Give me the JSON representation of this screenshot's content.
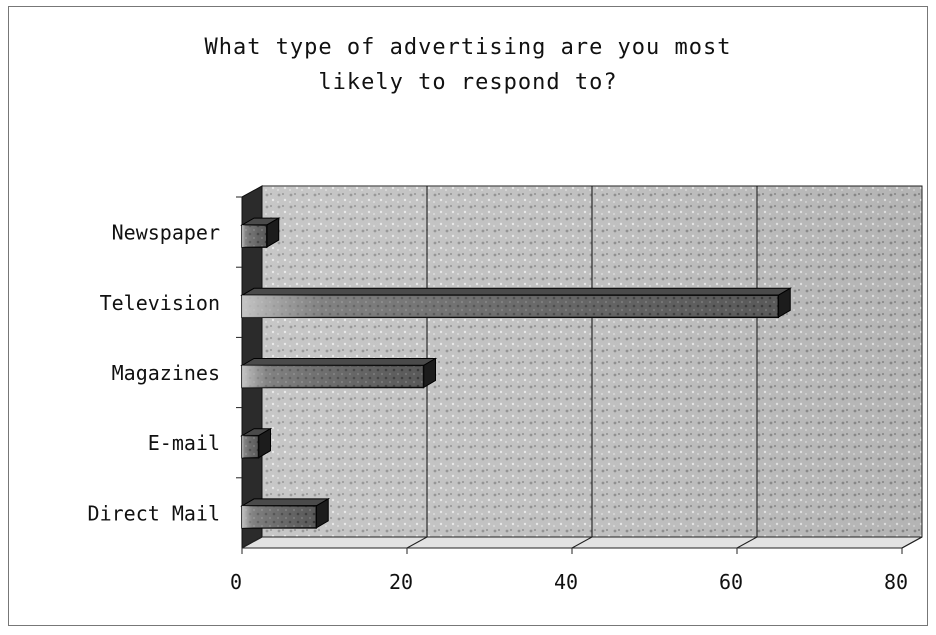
{
  "chart_data": {
    "type": "bar",
    "orientation": "horizontal",
    "title": "What type of advertising are you most\nlikely to respond to?",
    "categories": [
      "Newspaper",
      "Television",
      "Magazines",
      "E-mail",
      "Direct Mail"
    ],
    "values": [
      3,
      65,
      22,
      2,
      9
    ],
    "xlabel": "",
    "ylabel": "",
    "xlim": [
      0,
      80
    ],
    "xticks": [
      "0",
      "20",
      "40",
      "60",
      "80"
    ],
    "grid": true,
    "legend": "none"
  }
}
